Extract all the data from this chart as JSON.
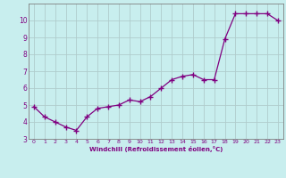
{
  "x": [
    0,
    1,
    2,
    3,
    4,
    5,
    6,
    7,
    8,
    9,
    10,
    11,
    12,
    13,
    14,
    15,
    16,
    17,
    18,
    19,
    20,
    21,
    22,
    23
  ],
  "y": [
    4.9,
    4.3,
    4.0,
    3.7,
    3.5,
    4.3,
    4.8,
    4.9,
    5.0,
    5.3,
    5.2,
    5.5,
    6.0,
    6.5,
    6.7,
    6.8,
    6.5,
    6.5,
    8.9,
    10.4,
    10.4,
    10.4,
    10.4,
    10.0
  ],
  "line_color": "#800080",
  "marker": "+",
  "marker_size": 4.0,
  "line_width": 0.9,
  "bg_color": "#c8eeee",
  "grid_color": "#b0cccc",
  "xlabel": "Windchill (Refroidissement éolien,°C)",
  "ylabel": "",
  "xlim": [
    -0.5,
    23.5
  ],
  "ylim": [
    3.0,
    11.0
  ],
  "yticks": [
    3,
    4,
    5,
    6,
    7,
    8,
    9,
    10
  ],
  "xticks": [
    0,
    1,
    2,
    3,
    4,
    5,
    6,
    7,
    8,
    9,
    10,
    11,
    12,
    13,
    14,
    15,
    16,
    17,
    18,
    19,
    20,
    21,
    22,
    23
  ],
  "label_fontsize": 5.0,
  "tick_fontsize": 5.5,
  "axis_color": "#800080",
  "spine_color": "#808080"
}
